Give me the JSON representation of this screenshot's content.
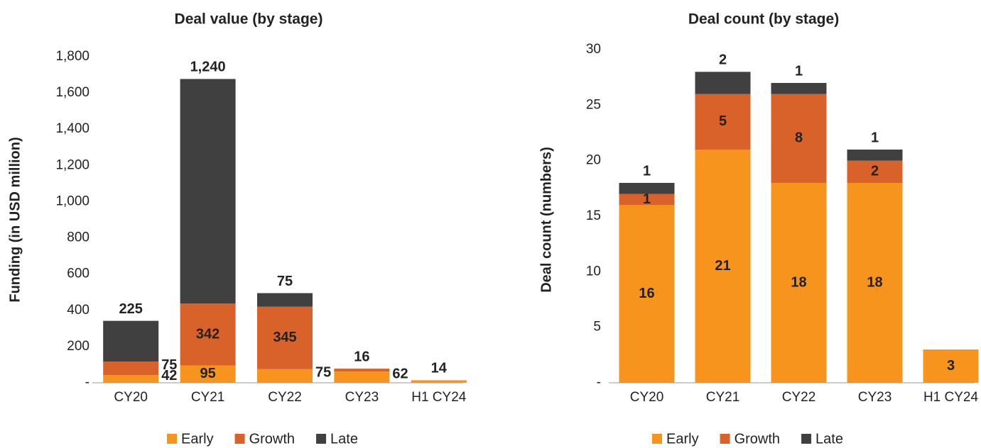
{
  "chart_data": [
    {
      "type": "bar",
      "stacked": true,
      "title": "Deal value (by stage)",
      "y_label": "Funding (in USD million)",
      "categories": [
        "CY20",
        "CY21",
        "CY22",
        "CY23",
        "H1 CY24"
      ],
      "series": [
        {
          "name": "Early",
          "color": "#f7941d",
          "values": [
            42,
            95,
            75,
            62,
            14
          ]
        },
        {
          "name": "Growth",
          "color": "#d9622b",
          "values": [
            75,
            342,
            345,
            16,
            null
          ]
        },
        {
          "name": "Late",
          "color": "#404041",
          "values": [
            225,
            1240,
            75,
            null,
            null
          ],
          "value_labels": [
            "225",
            "1,240",
            "75",
            null,
            null
          ]
        }
      ],
      "ylim": [
        0,
        1800
      ],
      "yticks": [
        {
          "value": 0,
          "label": "-"
        },
        200,
        400,
        600,
        800,
        {
          "value": 1000,
          "label": "1,000"
        },
        {
          "value": 1200,
          "label": "1,200"
        },
        {
          "value": 1400,
          "label": "1,400"
        },
        {
          "value": 1600,
          "label": "1,600"
        },
        {
          "value": 1800,
          "label": "1,800"
        }
      ],
      "legend": "bottom"
    },
    {
      "type": "bar",
      "stacked": true,
      "title": "Deal count (by stage)",
      "y_label": "Deal count (numbers)",
      "categories": [
        "CY20",
        "CY21",
        "CY22",
        "CY23",
        "H1 CY24"
      ],
      "series": [
        {
          "name": "Early",
          "color": "#f7941d",
          "values": [
            16,
            21,
            18,
            18,
            3
          ]
        },
        {
          "name": "Growth",
          "color": "#d9622b",
          "values": [
            1,
            5,
            8,
            2,
            null
          ]
        },
        {
          "name": "Late",
          "color": "#404041",
          "values": [
            1,
            2,
            1,
            1,
            null
          ]
        }
      ],
      "ylim": [
        0,
        30
      ],
      "yticks": [
        {
          "value": 0,
          "label": "-"
        },
        5,
        10,
        15,
        20,
        25,
        30
      ],
      "legend": "bottom"
    }
  ]
}
